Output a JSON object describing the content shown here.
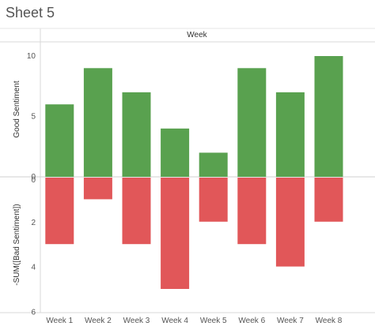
{
  "sheet": {
    "title": "Sheet 5"
  },
  "chart_data": {
    "type": "bar",
    "column_header": "Week",
    "categories": [
      "Week 1",
      "Week 2",
      "Week 3",
      "Week 4",
      "Week 5",
      "Week 6",
      "Week 7",
      "Week 8"
    ],
    "series": [
      {
        "name": "Good Sentiment",
        "values": [
          6,
          9,
          7,
          4,
          2,
          9,
          7,
          10
        ],
        "color": "#59a14f"
      },
      {
        "name": "-SUM([Bad Sentiment])",
        "values": [
          3,
          1,
          3,
          5,
          2,
          3,
          4,
          2
        ],
        "color": "#e15759"
      }
    ],
    "panes": [
      {
        "ylabel": "Good Sentiment",
        "ylim": [
          0,
          10
        ],
        "ticks": [
          0,
          5,
          10
        ],
        "direction": "up"
      },
      {
        "ylabel": "-SUM([Bad Sentiment])",
        "ylim": [
          0,
          6
        ],
        "ticks": [
          0,
          2,
          4,
          6
        ],
        "direction": "down"
      }
    ],
    "grid": false,
    "legend": "none"
  }
}
